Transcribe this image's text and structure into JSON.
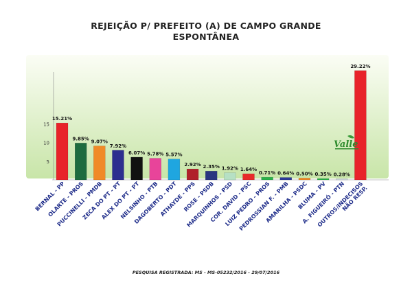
{
  "title": "REJEIÇÃO P/ PREFEITO (A) DE CAMPO GRANDE",
  "subtitle": "ESPONTÂNEA",
  "footer": "PESQUISA REGISTRADA: MS - MS-05232/2016 - 29/07/2016",
  "logo": {
    "text": "Valle",
    "icon": "valle-logo-icon"
  },
  "colors": {
    "plot_bg_top": "#fbfdf5",
    "plot_bg_bottom": "#c8e5a8",
    "label_color": "#1f2d8a"
  },
  "chart_data": {
    "type": "bar",
    "title": "REJEIÇÃO P/ PREFEITO (A) DE CAMPO GRANDE",
    "subtitle": "ESPONTÂNEA",
    "xlabel": "",
    "ylabel": "",
    "ylim": [
      0,
      32
    ],
    "yticks": [
      5,
      10,
      15
    ],
    "grid": false,
    "categories": [
      "BERNAL - PP",
      "OLARTE - PROS",
      "PUCCINELLI - PMDB",
      "ZECA DO PT - PT",
      "ALEX DO PT - PT",
      "NELSINHO - PTB",
      "DAGOBERTO - PDT",
      "ATHAYDE - PPS",
      "ROSE - PSDB",
      "MARQUINHOS - PSD",
      "COR. DAVID - PSC",
      "LUIZ PEDRO - PROS",
      "PEDROSSIAN F. - PMB",
      "AMARILHA - PSDC",
      "BLUMA - PV",
      "A. FIGUEIRÓ - PTN",
      "OUTROS/INDECISOS NÃO RESP."
    ],
    "values": [
      15.21,
      9.85,
      9.07,
      7.92,
      6.07,
      5.78,
      5.57,
      2.92,
      2.35,
      1.92,
      1.64,
      0.71,
      0.64,
      0.5,
      0.35,
      0.28,
      29.22
    ],
    "data_labels": [
      "15.21%",
      "9.85%",
      "9.07%",
      "7.92%",
      "6.07%",
      "5.78%",
      "5.57%",
      "2.92%",
      "2.35%",
      "1.92%",
      "1.64%",
      "0.71%",
      "0.64%",
      "0.50%",
      "0.35%",
      "0.28%",
      "29.22%"
    ],
    "bar_colors": [
      "#e8232a",
      "#1e6b3f",
      "#f08a28",
      "#2d2f8f",
      "#111111",
      "#e8449a",
      "#1fa6e0",
      "#b01f2a",
      "#2a3580",
      "#b6e0c4",
      "#e82a2a",
      "#2bb24a",
      "#2d3a9a",
      "#f08a28",
      "#2bb24a",
      "#cfd8dc",
      "#e8232a"
    ]
  }
}
